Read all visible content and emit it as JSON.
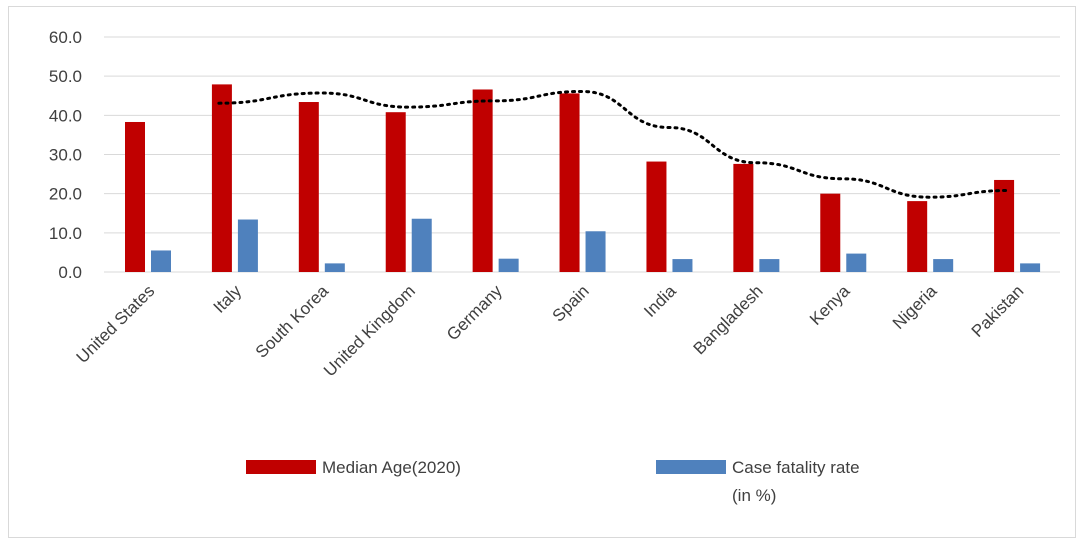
{
  "chart_data": {
    "type": "bar",
    "title": "",
    "xlabel": "",
    "ylabel": "",
    "ylim": [
      0,
      60
    ],
    "yticks": [
      "0.0",
      "10.0",
      "20.0",
      "30.0",
      "40.0",
      "50.0",
      "60.0"
    ],
    "grid": true,
    "categories": [
      "United States",
      "Italy",
      "South Korea",
      "United Kingdom",
      "Germany",
      "Spain",
      "India",
      "Bangladesh",
      "Kenya",
      "Nigeria",
      "Pakistan"
    ],
    "series": [
      {
        "name": "Median Age(2020)",
        "color": "#c00000",
        "values": [
          38.3,
          47.9,
          43.4,
          40.8,
          46.6,
          45.6,
          28.2,
          27.6,
          20.0,
          18.1,
          23.5
        ]
      },
      {
        "name": "Case fatality rate (in %)",
        "name_lines": [
          "Case fatality rate",
          "(in %)"
        ],
        "color": "#4f81bd",
        "values": [
          5.5,
          13.4,
          2.2,
          13.6,
          3.4,
          10.4,
          3.3,
          3.3,
          4.7,
          3.3,
          2.2
        ]
      }
    ],
    "trendline": {
      "type": "moving-average",
      "of_series": "Median Age(2020)",
      "style": "dotted",
      "color": "#000000",
      "values": [
        null,
        43.1,
        45.7,
        42.1,
        43.7,
        46.1,
        36.9,
        27.9,
        23.8,
        19.1,
        20.8
      ]
    },
    "legend_position": "bottom"
  }
}
